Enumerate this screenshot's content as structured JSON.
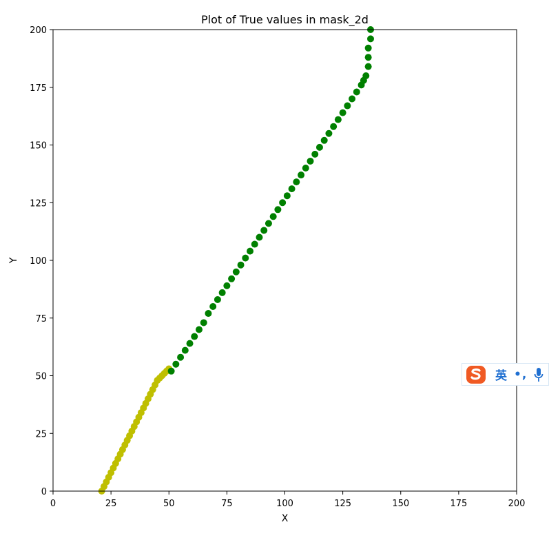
{
  "colors": {
    "background": "#ffffff",
    "axis": "#000000",
    "yellow_series": "#bfbf00",
    "green_series": "#008000"
  },
  "ime_toolbar": {
    "logo_icon": "sogou-logo-icon",
    "language_label": "英",
    "punctuation_label": "•,",
    "mic_icon": "microphone-icon"
  },
  "chart_data": {
    "type": "scatter",
    "title": "Plot of True values in mask_2d",
    "xlabel": "X",
    "ylabel": "Y",
    "xlim": [
      0,
      200
    ],
    "ylim": [
      0,
      200
    ],
    "xticks": [
      "0",
      "25",
      "50",
      "75",
      "100",
      "125",
      "150",
      "175",
      "200"
    ],
    "yticks": [
      "0",
      "25",
      "50",
      "75",
      "100",
      "125",
      "150",
      "175",
      "200"
    ],
    "grid": false,
    "series": [
      {
        "color": "#bfbf00",
        "points": [
          [
            21,
            0
          ],
          [
            22,
            2
          ],
          [
            23,
            4
          ],
          [
            24,
            6
          ],
          [
            25,
            8
          ],
          [
            26,
            10
          ],
          [
            27,
            12
          ],
          [
            28,
            14
          ],
          [
            29,
            16
          ],
          [
            30,
            18
          ],
          [
            31,
            20
          ],
          [
            32,
            22
          ],
          [
            33,
            24
          ],
          [
            34,
            26
          ],
          [
            35,
            28
          ],
          [
            36,
            30
          ],
          [
            37,
            32
          ],
          [
            38,
            34
          ],
          [
            39,
            36
          ],
          [
            40,
            38
          ],
          [
            41,
            40
          ],
          [
            42,
            42
          ],
          [
            43,
            44
          ],
          [
            44,
            46
          ],
          [
            45,
            48
          ],
          [
            46,
            49
          ],
          [
            47,
            50
          ],
          [
            48,
            51
          ],
          [
            49,
            52
          ],
          [
            50,
            53
          ]
        ]
      },
      {
        "color": "#008000",
        "points": [
          [
            51,
            52
          ],
          [
            53,
            55
          ],
          [
            55,
            58
          ],
          [
            57,
            61
          ],
          [
            59,
            64
          ],
          [
            61,
            67
          ],
          [
            63,
            70
          ],
          [
            65,
            73
          ],
          [
            67,
            77
          ],
          [
            69,
            80
          ],
          [
            71,
            83
          ],
          [
            73,
            86
          ],
          [
            75,
            89
          ],
          [
            77,
            92
          ],
          [
            79,
            95
          ],
          [
            81,
            98
          ],
          [
            83,
            101
          ],
          [
            85,
            104
          ],
          [
            87,
            107
          ],
          [
            89,
            110
          ],
          [
            91,
            113
          ],
          [
            93,
            116
          ],
          [
            95,
            119
          ],
          [
            97,
            122
          ],
          [
            99,
            125
          ],
          [
            101,
            128
          ],
          [
            103,
            131
          ],
          [
            105,
            134
          ],
          [
            107,
            137
          ],
          [
            109,
            140
          ],
          [
            111,
            143
          ],
          [
            113,
            146
          ],
          [
            115,
            149
          ],
          [
            117,
            152
          ],
          [
            119,
            155
          ],
          [
            121,
            158
          ],
          [
            123,
            161
          ],
          [
            125,
            164
          ],
          [
            127,
            167
          ],
          [
            129,
            170
          ],
          [
            131,
            173
          ],
          [
            133,
            176
          ],
          [
            134,
            178
          ],
          [
            135,
            180
          ],
          [
            136,
            184
          ],
          [
            136,
            188
          ],
          [
            136,
            192
          ],
          [
            137,
            196
          ],
          [
            137,
            200
          ]
        ]
      }
    ]
  }
}
